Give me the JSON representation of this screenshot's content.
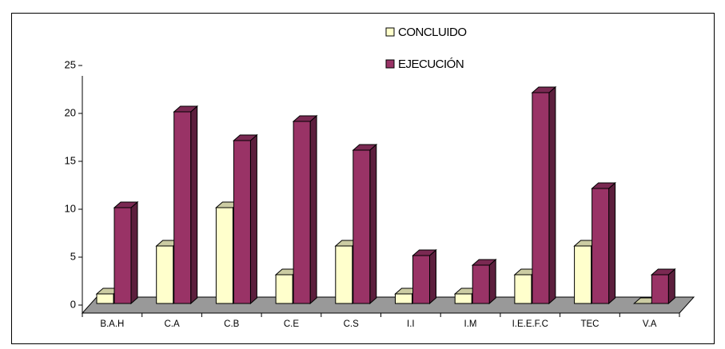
{
  "chart_data": {
    "type": "bar",
    "categories": [
      "B.A.H",
      "C.A",
      "C.B",
      "C.E",
      "C.S",
      "I.I",
      "I.M",
      "I.E.E.F.C",
      "TEC",
      "V.A"
    ],
    "series": [
      {
        "name": "CONCLUIDO",
        "color": "#ffffcc",
        "values": [
          1,
          6,
          10,
          3,
          6,
          1,
          1,
          3,
          6,
          0
        ]
      },
      {
        "name": "EJECUCIÓN",
        "color": "#993366",
        "values": [
          10,
          20,
          17,
          19,
          16,
          5,
          4,
          22,
          12,
          3
        ]
      }
    ],
    "ylim": [
      0,
      25
    ],
    "yticks": [
      0,
      5,
      10,
      15,
      20,
      25
    ]
  }
}
